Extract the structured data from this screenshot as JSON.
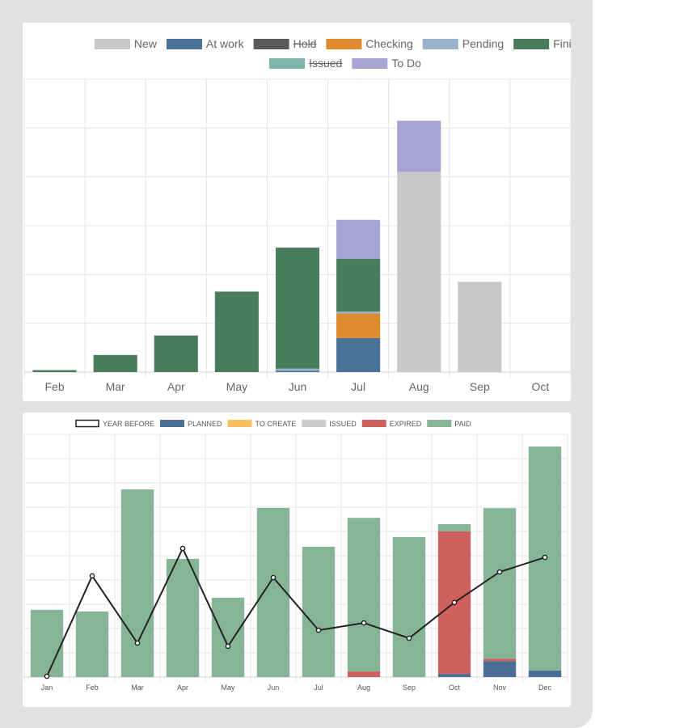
{
  "colors": {
    "New": "#c8c8c8",
    "At work": "#4a7298",
    "Hold": "#5a5a5a",
    "Checking": "#e08a2e",
    "Pending": "#9ab2ca",
    "Finished": "#487c5a",
    "Issued": "#7fb3ad",
    "To Do": "#a7a3d3",
    "YEAR BEFORE": "#222222",
    "PLANNED": "#4a6f96",
    "TO CREATE": "#f7bf60",
    "ISSUED": "#cbcdcf",
    "EXPIRED": "#d0605e",
    "PAID": "#84b594"
  },
  "chart_data": [
    {
      "type": "bar",
      "stacked": true,
      "categories": [
        "Feb",
        "Mar",
        "Apr",
        "May",
        "Jun",
        "Jul",
        "Aug",
        "Sep",
        "Oct"
      ],
      "legend": [
        "New",
        "At work",
        "Hold",
        "Checking",
        "Pending",
        "Finished",
        "Issued",
        "To Do"
      ],
      "legend_hidden": [
        "Hold",
        "Issued"
      ],
      "ylim": [
        0,
        6
      ],
      "grid": true,
      "legend_position": "top",
      "series": [
        {
          "name": "New",
          "values": [
            0,
            0,
            0,
            0,
            0,
            0,
            4.1,
            1.85,
            0
          ]
        },
        {
          "name": "At work",
          "values": [
            0,
            0,
            0,
            0,
            0.03,
            0.7,
            0,
            0,
            0
          ]
        },
        {
          "name": "Hold",
          "values": [
            0,
            0,
            0,
            0,
            0,
            0,
            0,
            0,
            0
          ]
        },
        {
          "name": "Checking",
          "values": [
            0,
            0,
            0,
            0,
            0,
            0.5,
            0,
            0,
            0
          ]
        },
        {
          "name": "Pending",
          "values": [
            0,
            0,
            0,
            0,
            0.04,
            0.04,
            0,
            0,
            0
          ]
        },
        {
          "name": "Finished",
          "values": [
            0.04,
            0.35,
            0.75,
            1.65,
            2.48,
            1.08,
            0,
            0,
            0
          ]
        },
        {
          "name": "Issued",
          "values": [
            0,
            0,
            0,
            0,
            0,
            0,
            0,
            0,
            0
          ]
        },
        {
          "name": "To Do",
          "values": [
            0,
            0,
            0,
            0,
            0,
            0.8,
            1.05,
            0,
            0
          ]
        }
      ]
    },
    {
      "type": "bar",
      "stacked": true,
      "categories": [
        "Jan",
        "Feb",
        "Mar",
        "Apr",
        "May",
        "Jun",
        "Jul",
        "Aug",
        "Sep",
        "Oct",
        "Nov",
        "Dec"
      ],
      "legend": [
        "YEAR BEFORE",
        "PLANNED",
        "TO CREATE",
        "ISSUED",
        "EXPIRED",
        "PAID"
      ],
      "ylim": [
        0,
        10
      ],
      "grid": true,
      "legend_position": "top",
      "series": [
        {
          "name": "PLANNED",
          "values": [
            0,
            0,
            0,
            0,
            0,
            0,
            0,
            0,
            0,
            0.13,
            0.66,
            0.27
          ]
        },
        {
          "name": "TO CREATE",
          "values": [
            0,
            0,
            0,
            0,
            0,
            0,
            0,
            0,
            0,
            0,
            0,
            0
          ]
        },
        {
          "name": "ISSUED",
          "values": [
            0,
            0,
            0,
            0,
            0,
            0,
            0,
            0,
            0,
            0,
            0,
            0
          ]
        },
        {
          "name": "EXPIRED",
          "values": [
            0,
            0,
            0,
            0,
            0,
            0,
            0,
            0.23,
            0,
            5.87,
            0.1,
            0
          ]
        },
        {
          "name": "PAID",
          "values": [
            2.77,
            2.7,
            7.73,
            4.87,
            3.27,
            6.97,
            5.37,
            6.33,
            5.77,
            0.3,
            6.2,
            9.23
          ]
        }
      ],
      "line": {
        "name": "YEAR BEFORE",
        "values": [
          0.03,
          4.17,
          1.4,
          5.3,
          1.27,
          4.1,
          1.93,
          2.23,
          1.6,
          3.07,
          4.33,
          4.93
        ]
      }
    }
  ]
}
